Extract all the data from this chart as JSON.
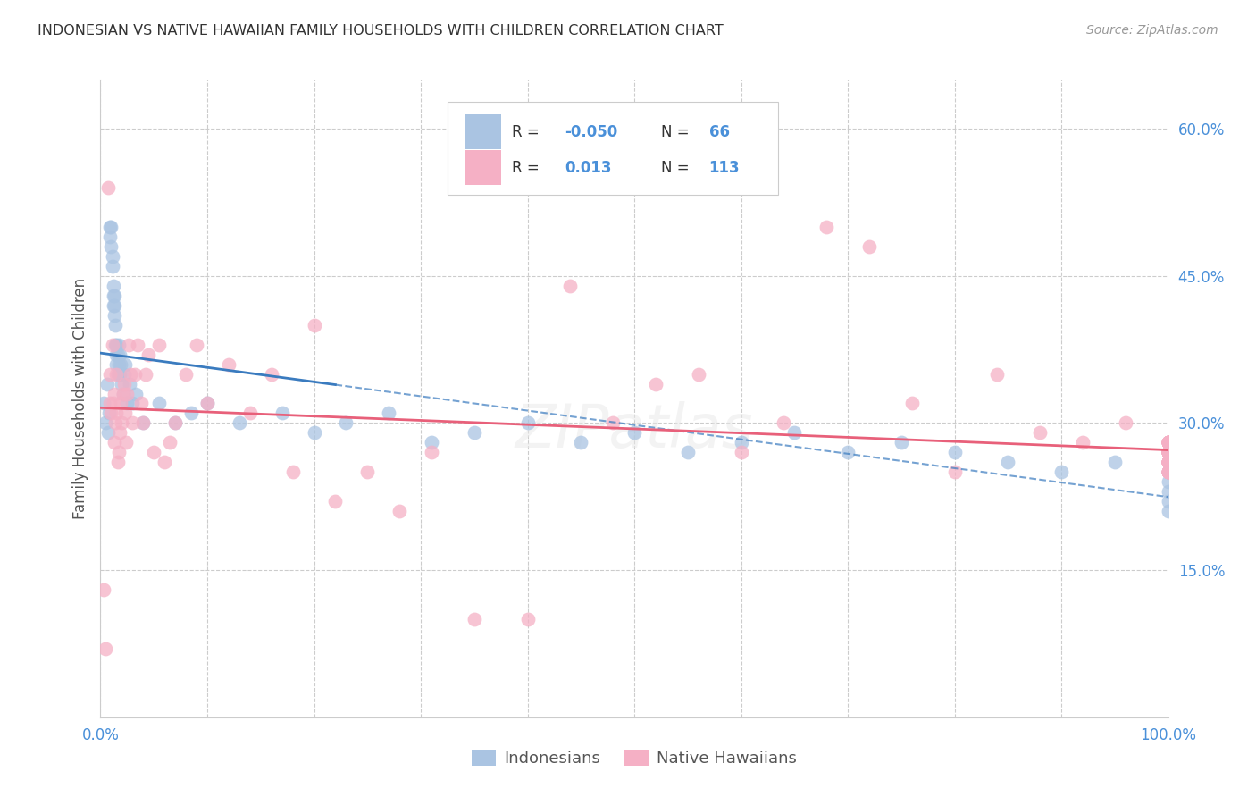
{
  "title": "INDONESIAN VS NATIVE HAWAIIAN FAMILY HOUSEHOLDS WITH CHILDREN CORRELATION CHART",
  "source": "Source: ZipAtlas.com",
  "ylabel": "Family Households with Children",
  "xlim": [
    0,
    1.0
  ],
  "ylim": [
    0,
    0.65
  ],
  "indonesian_R": -0.05,
  "indonesian_N": 66,
  "hawaiian_R": 0.013,
  "hawaiian_N": 113,
  "blue_color": "#aac4e2",
  "pink_color": "#f5b0c5",
  "blue_line_color": "#3a7bbf",
  "pink_line_color": "#e8607a",
  "grid_color": "#cccccc",
  "title_color": "#333333",
  "axis_label_color": "#555555",
  "tick_color": "#4a90d9",
  "r_value_color": "#4a90d9",
  "n_value_color": "#4a90d9",
  "label_color": "#333333",
  "background_color": "#ffffff",
  "indonesian_x": [
    0.003,
    0.005,
    0.006,
    0.007,
    0.008,
    0.009,
    0.009,
    0.01,
    0.01,
    0.011,
    0.011,
    0.012,
    0.012,
    0.012,
    0.013,
    0.013,
    0.013,
    0.014,
    0.014,
    0.015,
    0.015,
    0.015,
    0.016,
    0.016,
    0.017,
    0.017,
    0.018,
    0.018,
    0.019,
    0.02,
    0.021,
    0.022,
    0.023,
    0.025,
    0.027,
    0.03,
    0.033,
    0.04,
    0.055,
    0.07,
    0.085,
    0.1,
    0.13,
    0.17,
    0.2,
    0.23,
    0.27,
    0.31,
    0.35,
    0.4,
    0.45,
    0.5,
    0.55,
    0.6,
    0.65,
    0.7,
    0.75,
    0.8,
    0.85,
    0.9,
    0.95,
    1.0,
    1.0,
    1.0,
    1.0,
    1.0
  ],
  "indonesian_y": [
    0.32,
    0.3,
    0.34,
    0.29,
    0.31,
    0.5,
    0.49,
    0.48,
    0.5,
    0.47,
    0.46,
    0.44,
    0.43,
    0.42,
    0.41,
    0.43,
    0.42,
    0.38,
    0.4,
    0.37,
    0.36,
    0.38,
    0.35,
    0.37,
    0.36,
    0.38,
    0.35,
    0.37,
    0.36,
    0.34,
    0.33,
    0.35,
    0.36,
    0.32,
    0.34,
    0.32,
    0.33,
    0.3,
    0.32,
    0.3,
    0.31,
    0.32,
    0.3,
    0.31,
    0.29,
    0.3,
    0.31,
    0.28,
    0.29,
    0.3,
    0.28,
    0.29,
    0.27,
    0.28,
    0.29,
    0.27,
    0.28,
    0.27,
    0.26,
    0.25,
    0.26,
    0.25,
    0.24,
    0.23,
    0.22,
    0.21
  ],
  "hawaiian_x": [
    0.003,
    0.005,
    0.007,
    0.009,
    0.009,
    0.01,
    0.011,
    0.012,
    0.013,
    0.013,
    0.014,
    0.015,
    0.015,
    0.016,
    0.017,
    0.018,
    0.019,
    0.02,
    0.021,
    0.022,
    0.023,
    0.024,
    0.025,
    0.026,
    0.028,
    0.03,
    0.032,
    0.035,
    0.038,
    0.04,
    0.042,
    0.045,
    0.05,
    0.055,
    0.06,
    0.065,
    0.07,
    0.08,
    0.09,
    0.1,
    0.12,
    0.14,
    0.16,
    0.18,
    0.2,
    0.22,
    0.25,
    0.28,
    0.31,
    0.35,
    0.4,
    0.44,
    0.48,
    0.52,
    0.56,
    0.6,
    0.64,
    0.68,
    0.72,
    0.76,
    0.8,
    0.84,
    0.88,
    0.92,
    0.96,
    1.0,
    1.0,
    1.0,
    1.0,
    1.0,
    1.0,
    1.0,
    1.0,
    1.0,
    1.0,
    1.0,
    1.0,
    1.0,
    1.0,
    1.0,
    1.0,
    1.0,
    1.0,
    1.0,
    1.0,
    1.0,
    1.0,
    1.0,
    1.0,
    1.0,
    1.0,
    1.0,
    1.0,
    1.0,
    1.0,
    1.0,
    1.0,
    1.0,
    1.0,
    1.0,
    1.0,
    1.0,
    1.0,
    1.0,
    1.0,
    1.0,
    1.0,
    1.0,
    1.0,
    1.0,
    1.0,
    1.0,
    1.0
  ],
  "hawaiian_y": [
    0.13,
    0.07,
    0.54,
    0.32,
    0.35,
    0.31,
    0.38,
    0.32,
    0.33,
    0.28,
    0.3,
    0.35,
    0.31,
    0.26,
    0.27,
    0.29,
    0.32,
    0.3,
    0.33,
    0.34,
    0.31,
    0.28,
    0.33,
    0.38,
    0.35,
    0.3,
    0.35,
    0.38,
    0.32,
    0.3,
    0.35,
    0.37,
    0.27,
    0.38,
    0.26,
    0.28,
    0.3,
    0.35,
    0.38,
    0.32,
    0.36,
    0.31,
    0.35,
    0.25,
    0.4,
    0.22,
    0.25,
    0.21,
    0.27,
    0.1,
    0.1,
    0.44,
    0.3,
    0.34,
    0.35,
    0.27,
    0.3,
    0.5,
    0.48,
    0.32,
    0.25,
    0.35,
    0.29,
    0.28,
    0.3,
    0.28,
    0.28,
    0.27,
    0.27,
    0.26,
    0.26,
    0.27,
    0.27,
    0.28,
    0.28,
    0.27,
    0.27,
    0.28,
    0.28,
    0.26,
    0.26,
    0.27,
    0.27,
    0.25,
    0.25,
    0.26,
    0.26,
    0.27,
    0.27,
    0.26,
    0.26,
    0.28,
    0.28,
    0.27,
    0.27,
    0.25,
    0.25,
    0.26,
    0.26,
    0.28,
    0.28,
    0.27,
    0.27,
    0.25,
    0.25,
    0.26,
    0.26,
    0.27,
    0.27,
    0.26,
    0.26,
    0.25,
    0.25
  ]
}
